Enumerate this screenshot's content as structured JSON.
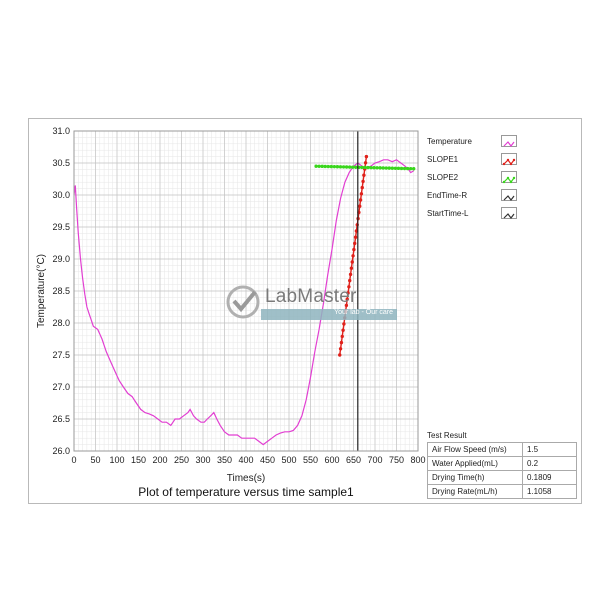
{
  "chart_data": {
    "type": "line",
    "title": "Plot of temperature versus time sample1",
    "xlabel": "Times(s)",
    "ylabel": "Temperature(°C)",
    "xlim": [
      0,
      800
    ],
    "ylim": [
      26.0,
      31.0
    ],
    "x_ticks": [
      0,
      50,
      100,
      150,
      200,
      250,
      300,
      350,
      400,
      450,
      500,
      550,
      600,
      650,
      700,
      750,
      800
    ],
    "y_ticks": [
      26.0,
      26.5,
      27.0,
      27.5,
      28.0,
      28.5,
      29.0,
      29.5,
      30.0,
      30.5,
      31.0
    ],
    "grid": true,
    "legend_position": "right",
    "series": [
      {
        "name": "Temperature",
        "color": "#e23fd2",
        "style": "line",
        "points": [
          [
            0,
            30.0
          ],
          [
            3,
            30.15
          ],
          [
            6,
            29.8
          ],
          [
            10,
            29.4
          ],
          [
            15,
            29.0
          ],
          [
            20,
            28.7
          ],
          [
            25,
            28.45
          ],
          [
            30,
            28.25
          ],
          [
            35,
            28.15
          ],
          [
            40,
            28.05
          ],
          [
            45,
            27.95
          ],
          [
            55,
            27.9
          ],
          [
            65,
            27.75
          ],
          [
            75,
            27.55
          ],
          [
            85,
            27.4
          ],
          [
            95,
            27.25
          ],
          [
            105,
            27.1
          ],
          [
            115,
            27.0
          ],
          [
            125,
            26.9
          ],
          [
            135,
            26.85
          ],
          [
            145,
            26.75
          ],
          [
            155,
            26.65
          ],
          [
            165,
            26.6
          ],
          [
            175,
            26.58
          ],
          [
            185,
            26.55
          ],
          [
            195,
            26.5
          ],
          [
            205,
            26.45
          ],
          [
            215,
            26.45
          ],
          [
            225,
            26.4
          ],
          [
            235,
            26.5
          ],
          [
            245,
            26.5
          ],
          [
            255,
            26.55
          ],
          [
            265,
            26.6
          ],
          [
            270,
            26.65
          ],
          [
            278,
            26.55
          ],
          [
            285,
            26.5
          ],
          [
            295,
            26.45
          ],
          [
            303,
            26.45
          ],
          [
            310,
            26.5
          ],
          [
            318,
            26.55
          ],
          [
            325,
            26.6
          ],
          [
            332,
            26.5
          ],
          [
            340,
            26.4
          ],
          [
            350,
            26.3
          ],
          [
            360,
            26.25
          ],
          [
            370,
            26.25
          ],
          [
            380,
            26.25
          ],
          [
            390,
            26.2
          ],
          [
            400,
            26.2
          ],
          [
            410,
            26.2
          ],
          [
            420,
            26.2
          ],
          [
            430,
            26.15
          ],
          [
            440,
            26.1
          ],
          [
            450,
            26.15
          ],
          [
            460,
            26.2
          ],
          [
            470,
            26.25
          ],
          [
            480,
            26.28
          ],
          [
            490,
            26.3
          ],
          [
            500,
            26.3
          ],
          [
            510,
            26.32
          ],
          [
            520,
            26.4
          ],
          [
            530,
            26.55
          ],
          [
            540,
            26.8
          ],
          [
            550,
            27.15
          ],
          [
            560,
            27.55
          ],
          [
            570,
            27.9
          ],
          [
            580,
            28.3
          ],
          [
            590,
            28.75
          ],
          [
            600,
            29.15
          ],
          [
            610,
            29.6
          ],
          [
            620,
            29.95
          ],
          [
            630,
            30.2
          ],
          [
            640,
            30.35
          ],
          [
            650,
            30.45
          ],
          [
            660,
            30.5
          ],
          [
            670,
            30.45
          ],
          [
            680,
            30.42
          ],
          [
            690,
            30.45
          ],
          [
            700,
            30.5
          ],
          [
            710,
            30.52
          ],
          [
            720,
            30.55
          ],
          [
            730,
            30.55
          ],
          [
            740,
            30.52
          ],
          [
            750,
            30.55
          ],
          [
            760,
            30.5
          ],
          [
            770,
            30.45
          ],
          [
            778,
            30.4
          ],
          [
            783,
            30.35
          ],
          [
            790,
            30.38
          ]
        ]
      },
      {
        "name": "SLOPE1",
        "color": "#e0201a",
        "style": "dotted-line",
        "points": [
          [
            618,
            27.5
          ],
          [
            680,
            30.6
          ]
        ]
      },
      {
        "name": "SLOPE2",
        "color": "#39d61c",
        "style": "dotted-line",
        "points": [
          [
            563,
            30.45
          ],
          [
            790,
            30.41
          ]
        ]
      },
      {
        "name": "EndTime-R",
        "color": "#222222",
        "style": "vertical-line",
        "x": 660
      },
      {
        "name": "StartTime-L",
        "color": "#222222",
        "style": "vertical-line",
        "x": null
      }
    ]
  },
  "results": {
    "title": "Test Result",
    "rows": [
      {
        "label": "Air Flow Speed (m/s)",
        "value": "1.5"
      },
      {
        "label": "Water Applied(mL)",
        "value": "0.2"
      },
      {
        "label": "Drying Time(h)",
        "value": "0.1809"
      },
      {
        "label": "Drying Rate(mL/h)",
        "value": "1.1058"
      }
    ]
  },
  "watermark": {
    "name": "LabMaster",
    "tagline": "Your lab - Our care"
  }
}
